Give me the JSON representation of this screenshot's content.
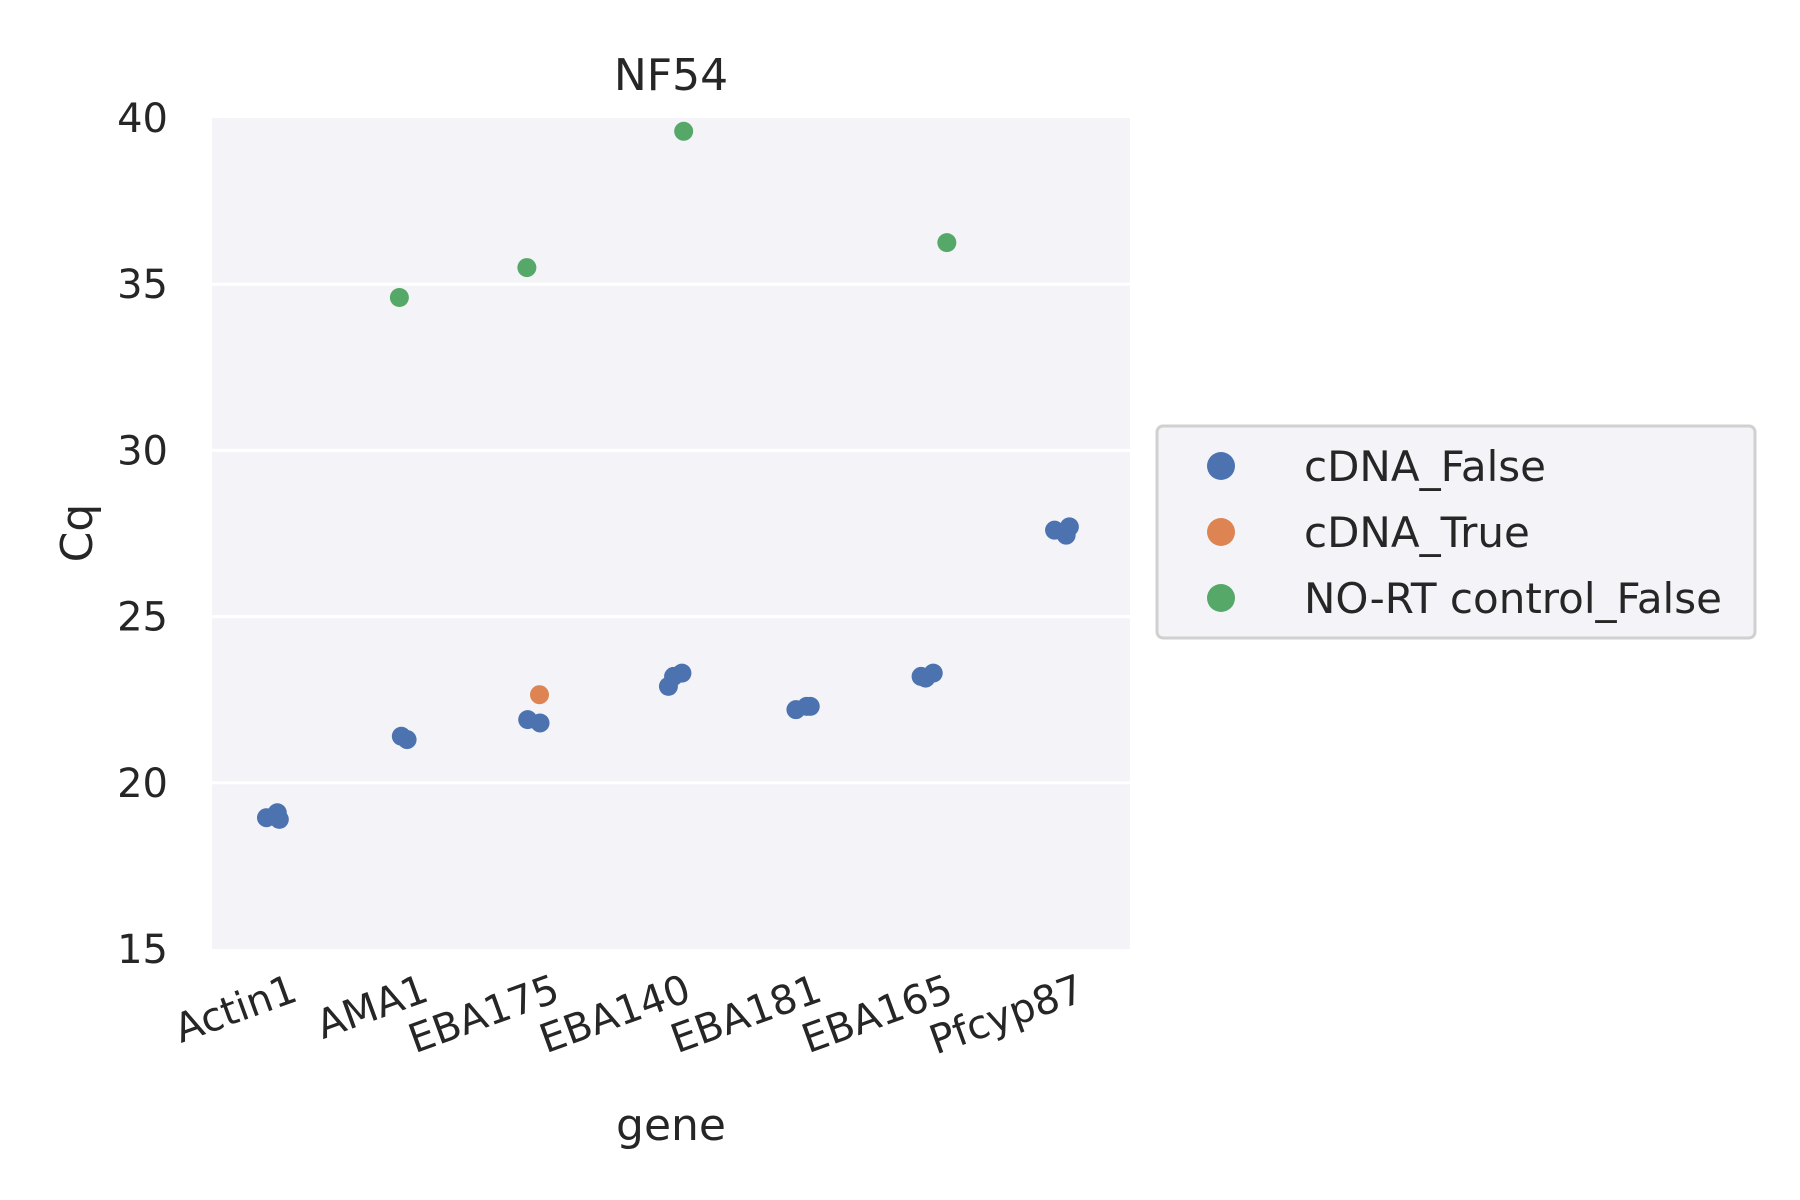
{
  "chart_data": {
    "type": "scatter",
    "title": "NF54",
    "xlabel": "gene",
    "ylabel": "Cq",
    "ylim": [
      15,
      40
    ],
    "yticks": [
      15,
      20,
      25,
      30,
      35,
      40
    ],
    "categories": [
      "Actin1",
      "AMA1",
      "EBA175",
      "EBA140",
      "EBA181",
      "EBA165",
      "Pfcyp87"
    ],
    "grid": true,
    "legend_position": "right",
    "series": [
      {
        "name": "cDNA_False",
        "color": "#4c72b0",
        "points": [
          {
            "x": "Actin1",
            "y": 19.1
          },
          {
            "x": "Actin1",
            "y": 18.9
          },
          {
            "x": "Actin1",
            "y": 18.95
          },
          {
            "x": "AMA1",
            "y": 21.4
          },
          {
            "x": "AMA1",
            "y": 21.3
          },
          {
            "x": "EBA175",
            "y": 21.8
          },
          {
            "x": "EBA175",
            "y": 21.9
          },
          {
            "x": "EBA140",
            "y": 23.3
          },
          {
            "x": "EBA140",
            "y": 23.2
          },
          {
            "x": "EBA140",
            "y": 22.9
          },
          {
            "x": "EBA181",
            "y": 22.2
          },
          {
            "x": "EBA181",
            "y": 22.3
          },
          {
            "x": "EBA181",
            "y": 22.3
          },
          {
            "x": "EBA165",
            "y": 23.2
          },
          {
            "x": "EBA165",
            "y": 23.3
          },
          {
            "x": "EBA165",
            "y": 23.15
          },
          {
            "x": "Pfcyp87",
            "y": 27.7
          },
          {
            "x": "Pfcyp87",
            "y": 27.6
          },
          {
            "x": "Pfcyp87",
            "y": 27.45
          }
        ]
      },
      {
        "name": "cDNA_True",
        "color": "#dd8452",
        "points": [
          {
            "x": "EBA175",
            "y": 22.65
          }
        ]
      },
      {
        "name": "NO-RT control_False",
        "color": "#55a868",
        "points": [
          {
            "x": "AMA1",
            "y": 34.6
          },
          {
            "x": "EBA175",
            "y": 35.5
          },
          {
            "x": "EBA140",
            "y": 39.6
          },
          {
            "x": "EBA165",
            "y": 36.25
          }
        ]
      }
    ]
  }
}
